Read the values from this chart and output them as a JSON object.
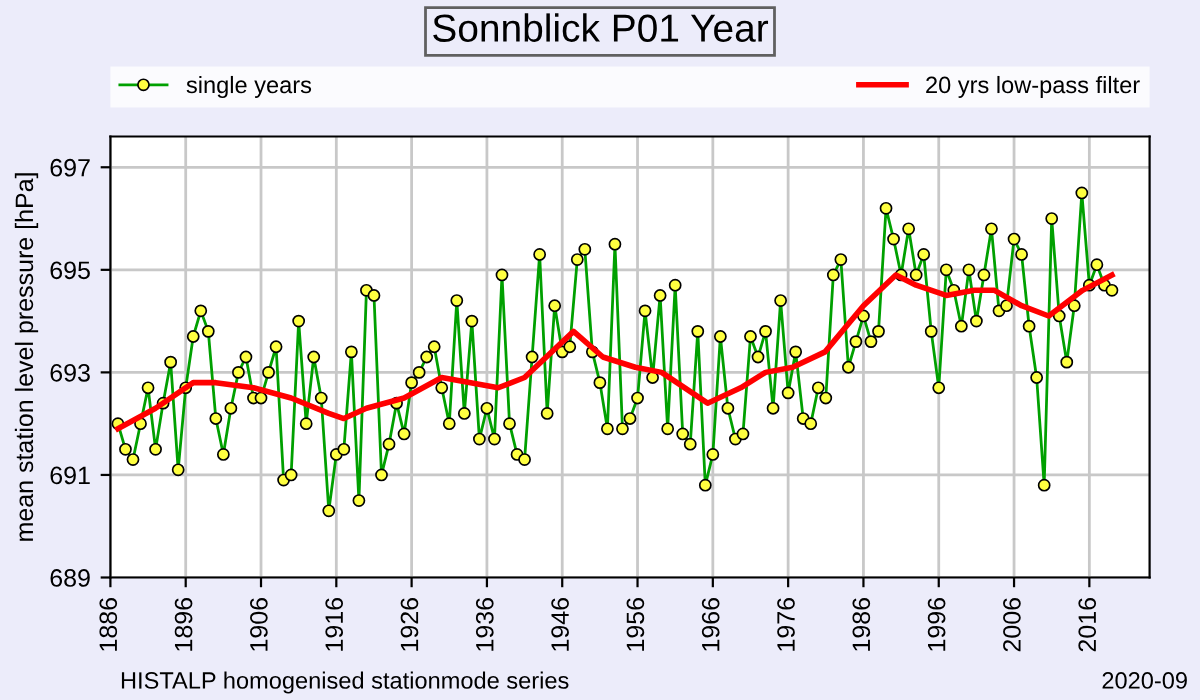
{
  "chart_data": {
    "type": "line",
    "title": "Sonnblick P01 Year",
    "ylabel": "mean station level pressure [hPa]",
    "xlim": [
      1886,
      2024
    ],
    "xticks": [
      1886,
      1896,
      1906,
      1916,
      1926,
      1936,
      1946,
      1956,
      1966,
      1976,
      1986,
      1996,
      2006,
      2016
    ],
    "ylim": [
      689,
      697.6
    ],
    "yticks": [
      689,
      691,
      693,
      695,
      697
    ],
    "grid": true,
    "legend": "top",
    "annotations": [
      "HISTALP homogenised stationmode series",
      "2020-09"
    ],
    "series": [
      {
        "name": "single years",
        "color": "#00a000",
        "marker": "circle",
        "x": [
          1887,
          1888,
          1889,
          1890,
          1891,
          1892,
          1893,
          1894,
          1895,
          1896,
          1897,
          1898,
          1899,
          1900,
          1901,
          1902,
          1903,
          1904,
          1905,
          1906,
          1907,
          1908,
          1909,
          1910,
          1911,
          1912,
          1913,
          1914,
          1915,
          1916,
          1917,
          1918,
          1919,
          1920,
          1921,
          1922,
          1923,
          1924,
          1925,
          1926,
          1927,
          1928,
          1929,
          1930,
          1931,
          1932,
          1933,
          1934,
          1935,
          1936,
          1937,
          1938,
          1939,
          1940,
          1941,
          1942,
          1943,
          1944,
          1945,
          1946,
          1947,
          1948,
          1949,
          1950,
          1951,
          1952,
          1953,
          1954,
          1955,
          1956,
          1957,
          1958,
          1959,
          1960,
          1961,
          1962,
          1963,
          1964,
          1965,
          1966,
          1967,
          1968,
          1969,
          1970,
          1971,
          1972,
          1973,
          1974,
          1975,
          1976,
          1977,
          1978,
          1979,
          1980,
          1981,
          1982,
          1983,
          1984,
          1985,
          1986,
          1987,
          1988,
          1989,
          1990,
          1991,
          1992,
          1993,
          1994,
          1995,
          1996,
          1997,
          1998,
          1999,
          2000,
          2001,
          2002,
          2003,
          2004,
          2005,
          2006,
          2007,
          2008,
          2009,
          2010,
          2011,
          2012,
          2013,
          2014,
          2015,
          2016,
          2017,
          2018,
          2019
        ],
        "values": [
          692.0,
          691.5,
          691.3,
          692.0,
          692.7,
          691.5,
          692.4,
          693.2,
          691.1,
          692.7,
          693.7,
          694.2,
          693.8,
          692.1,
          691.4,
          692.3,
          693.0,
          693.3,
          692.5,
          692.5,
          693.0,
          693.5,
          690.9,
          691.0,
          694.0,
          692.0,
          693.3,
          692.5,
          690.3,
          691.4,
          691.5,
          693.4,
          690.5,
          694.6,
          694.5,
          691.0,
          691.6,
          692.4,
          691.8,
          692.8,
          693.0,
          693.3,
          693.5,
          692.7,
          692.0,
          694.4,
          692.2,
          694.0,
          691.7,
          692.3,
          691.7,
          694.9,
          692.0,
          691.4,
          691.3,
          693.3,
          695.3,
          692.2,
          694.3,
          693.4,
          693.5,
          695.2,
          695.4,
          693.4,
          692.8,
          691.9,
          695.5,
          691.9,
          692.1,
          692.5,
          694.2,
          692.9,
          694.5,
          691.9,
          694.7,
          691.8,
          691.6,
          693.8,
          690.8,
          691.4,
          693.7,
          692.3,
          691.7,
          691.8,
          693.7,
          693.3,
          693.8,
          692.3,
          694.4,
          692.6,
          693.4,
          692.1,
          692.0,
          692.7,
          692.5,
          694.9,
          695.2,
          693.1,
          693.6,
          694.1,
          693.6,
          693.8,
          696.2,
          695.6,
          694.9,
          695.8,
          694.9,
          695.3,
          693.8,
          692.7,
          695.0,
          694.6,
          693.9,
          695.0,
          694.0,
          694.9,
          695.8,
          694.2,
          694.3,
          695.6,
          695.3,
          693.9,
          692.9,
          690.8,
          696.0,
          694.1,
          693.2,
          694.3,
          696.5,
          694.7,
          695.1,
          694.7,
          694.6
        ]
      },
      {
        "name": "20 yrs low-pass filter",
        "color": "#ff0000",
        "marker": "none",
        "x": [
          1887,
          1892,
          1897,
          1900,
          1905,
          1910,
          1915,
          1917,
          1920,
          1925,
          1930,
          1937.5,
          1941,
          1947.5,
          1951.4,
          1955.7,
          1959.2,
          1965.3,
          1969.7,
          1973,
          1976.6,
          1980.9,
          1986,
          1990.3,
          1993,
          1997,
          2000.7,
          2003.4,
          2007,
          2010.6,
          2015.1,
          2019
        ],
        "values": [
          691.9,
          692.3,
          692.8,
          692.8,
          692.7,
          692.5,
          692.2,
          692.1,
          692.3,
          692.5,
          692.9,
          692.7,
          692.9,
          693.8,
          693.3,
          693.1,
          693.0,
          692.4,
          692.7,
          693.0,
          693.1,
          693.4,
          694.3,
          694.9,
          694.7,
          694.5,
          694.6,
          694.6,
          694.3,
          694.1,
          694.6,
          694.9
        ]
      }
    ]
  }
}
